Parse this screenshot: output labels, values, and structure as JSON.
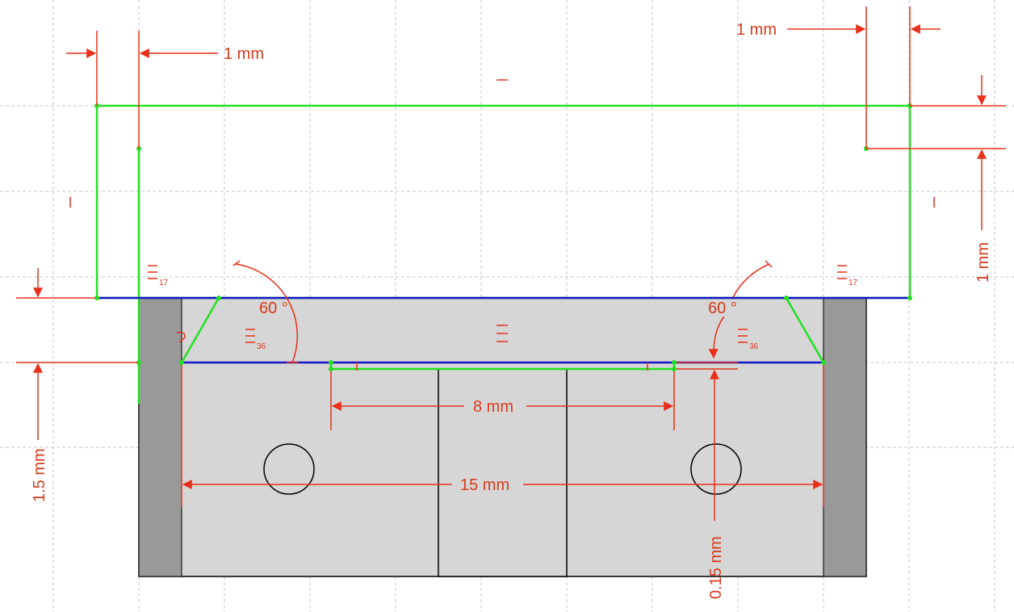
{
  "colors": {
    "dimension": "#e8301a",
    "construction_line": "#22e022",
    "base_edge": "#1515c8",
    "part_light": "#d6d6d6",
    "part_dark": "#999999",
    "grid": "#c8c8c8"
  },
  "dimensions": {
    "left_offset": "1 mm",
    "right_offset": "1 mm",
    "right_vertical": "1 mm",
    "left_height": "1.5 mm",
    "left_angle": "60 °",
    "right_angle": "60 °",
    "inner_width": "8 mm",
    "outer_width": "15 mm",
    "depth": "0.15 mm"
  },
  "constraints": {
    "left_equal_index": "17",
    "right_equal_index": "17",
    "left_angle_index": "36",
    "right_angle_index": "36"
  }
}
